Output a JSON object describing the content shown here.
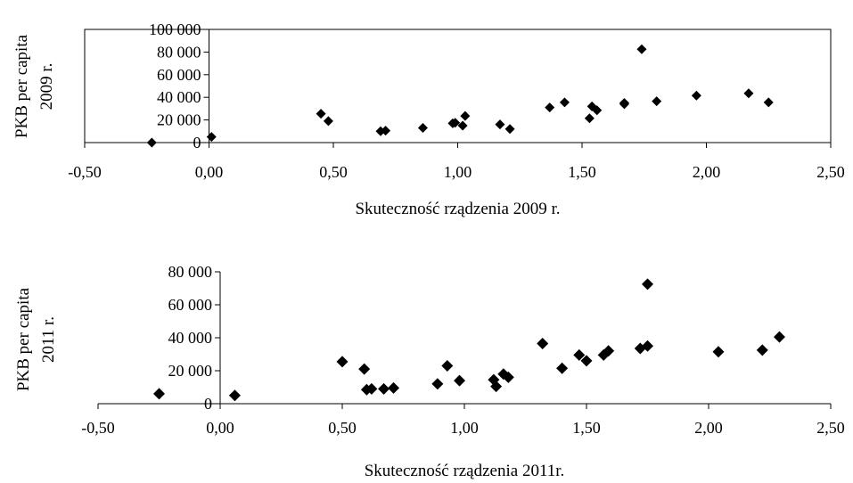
{
  "chart_data": [
    {
      "type": "scatter",
      "title": "",
      "xlabel": "Skuteczność rządzenia 2009 r.",
      "ylabel": [
        "PKB per capita",
        "2009 r."
      ],
      "xlim": [
        -0.5,
        2.5
      ],
      "ylim": [
        0,
        100000
      ],
      "xticks": [
        "-0,50",
        "0,00",
        "0,50",
        "1,00",
        "1,50",
        "2,00",
        "2,50"
      ],
      "yticks": [
        "0",
        "20 000",
        "40 000",
        "60 000",
        "80 000",
        "100 000"
      ],
      "grid": false,
      "legend": "none",
      "marker": "diamond",
      "marker_color": "#000000",
      "plot_border": true,
      "series": [
        {
          "points": [
            [
              -0.23,
              0
            ],
            [
              0.01,
              5000
            ],
            [
              0.45,
              25500
            ],
            [
              0.48,
              19000
            ],
            [
              0.69,
              10000
            ],
            [
              0.71,
              10500
            ],
            [
              0.86,
              13000
            ],
            [
              0.98,
              17000
            ],
            [
              0.99,
              17500
            ],
            [
              1.02,
              15000
            ],
            [
              1.03,
              23500
            ],
            [
              1.17,
              16000
            ],
            [
              1.21,
              12000
            ],
            [
              1.37,
              31000
            ],
            [
              1.43,
              35500
            ],
            [
              1.53,
              21500
            ],
            [
              1.54,
              32000
            ],
            [
              1.56,
              28500
            ],
            [
              1.67,
              35000
            ],
            [
              1.67,
              34000
            ],
            [
              1.74,
              82500
            ],
            [
              1.8,
              36500
            ],
            [
              1.96,
              41500
            ],
            [
              2.17,
              43500
            ],
            [
              2.25,
              35500
            ]
          ]
        }
      ]
    },
    {
      "type": "scatter",
      "title": "",
      "xlabel": "Skuteczność rządzenia 2011r.",
      "ylabel": [
        "PKB per capita",
        "2011 r."
      ],
      "xlim": [
        -0.5,
        2.5
      ],
      "ylim": [
        0,
        80000
      ],
      "xticks": [
        "-0,50",
        "0,00",
        "0,50",
        "1,00",
        "1,50",
        "2,00",
        "2,50"
      ],
      "yticks": [
        "0",
        "20 000",
        "40 000",
        "60 000",
        "80 000"
      ],
      "grid": false,
      "legend": "none",
      "marker": "diamond",
      "marker_color": "#000000",
      "plot_border": false,
      "series": [
        {
          "points": [
            [
              -0.25,
              6000
            ],
            [
              0.06,
              5000
            ],
            [
              0.5,
              25500
            ],
            [
              0.59,
              21000
            ],
            [
              0.6,
              8500
            ],
            [
              0.62,
              9000
            ],
            [
              0.67,
              9000
            ],
            [
              0.71,
              9500
            ],
            [
              0.89,
              12000
            ],
            [
              0.93,
              23000
            ],
            [
              0.98,
              14000
            ],
            [
              1.12,
              14500
            ],
            [
              1.13,
              10500
            ],
            [
              1.16,
              18000
            ],
            [
              1.18,
              16000
            ],
            [
              1.32,
              36500
            ],
            [
              1.4,
              21500
            ],
            [
              1.47,
              29500
            ],
            [
              1.5,
              26000
            ],
            [
              1.57,
              29500
            ],
            [
              1.59,
              32000
            ],
            [
              1.72,
              33500
            ],
            [
              1.75,
              72500
            ],
            [
              1.75,
              35000
            ],
            [
              2.04,
              31500
            ],
            [
              2.22,
              32500
            ],
            [
              2.29,
              40500
            ]
          ]
        }
      ]
    }
  ]
}
